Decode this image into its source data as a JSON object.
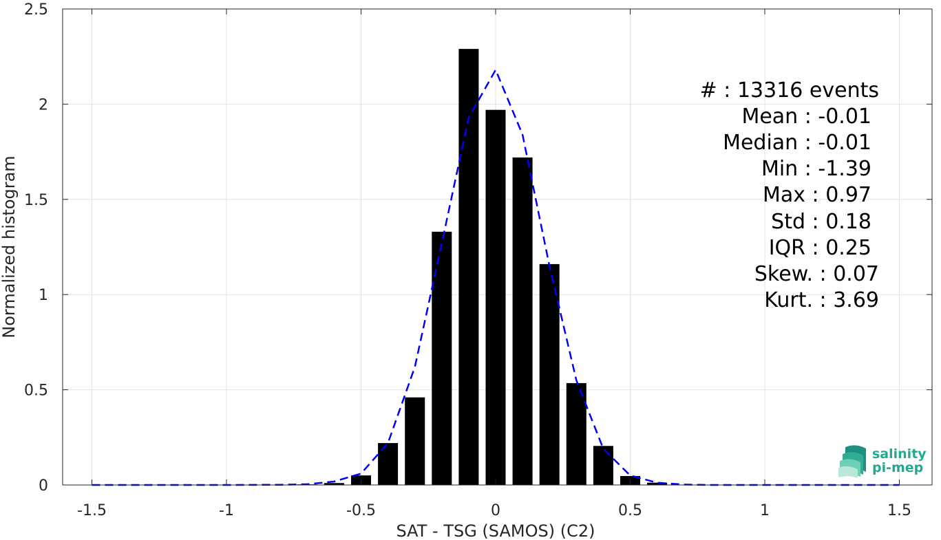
{
  "chart_data": {
    "type": "bar",
    "xlabel": "SAT - TSG (SAMOS) (C2)",
    "ylabel": "Normalized histogram",
    "xlim": [
      -1.5,
      1.5
    ],
    "ylim": [
      0,
      2.5
    ],
    "xticks": [
      -1.5,
      -1,
      -0.5,
      0,
      0.5,
      1,
      1.5
    ],
    "xtick_labels": [
      "-1.5",
      "-1",
      "-0.5",
      "0",
      "0.5",
      "1",
      "1.5"
    ],
    "yticks": [
      0,
      0.5,
      1,
      1.5,
      2,
      2.5
    ],
    "ytick_labels": [
      "0",
      "0.5",
      "1",
      "1.5",
      "2",
      "2.5"
    ],
    "grid": true,
    "bar_color": "#000000",
    "bars": {
      "x": [
        -0.7,
        -0.6,
        -0.5,
        -0.4,
        -0.3,
        -0.2,
        -0.1,
        0.0,
        0.1,
        0.2,
        0.3,
        0.4,
        0.5,
        0.6
      ],
      "values": [
        0.003,
        0.01,
        0.05,
        0.22,
        0.46,
        1.33,
        2.29,
        1.97,
        1.72,
        1.16,
        0.535,
        0.205,
        0.047,
        0.012
      ]
    },
    "fit_curve": {
      "style": "dashed",
      "color": "#0000ff",
      "x": [
        -1.5,
        -1.0,
        -0.8,
        -0.7,
        -0.6,
        -0.5,
        -0.4,
        -0.3,
        -0.2,
        -0.1,
        0.0,
        0.1,
        0.2,
        0.3,
        0.4,
        0.5,
        0.6,
        0.7,
        0.8,
        1.0,
        1.5
      ],
      "y": [
        0,
        0,
        0.001,
        0.004,
        0.018,
        0.06,
        0.22,
        0.62,
        1.27,
        1.93,
        2.18,
        1.84,
        1.15,
        0.55,
        0.19,
        0.05,
        0.012,
        0.002,
        0,
        0,
        0
      ]
    }
  },
  "stats": {
    "lines": [
      "#  : 13316 events",
      "Mean : -0.01",
      "Median : -0.01",
      "Min : -1.39",
      "Max : 0.97",
      "Std : 0.18",
      "IQR : 0.25",
      "Skew. : 0.07",
      "Kurt. : 3.69"
    ]
  },
  "logo": {
    "line1": "salinity",
    "line2": "pi-mep",
    "color": "#23a98f"
  }
}
